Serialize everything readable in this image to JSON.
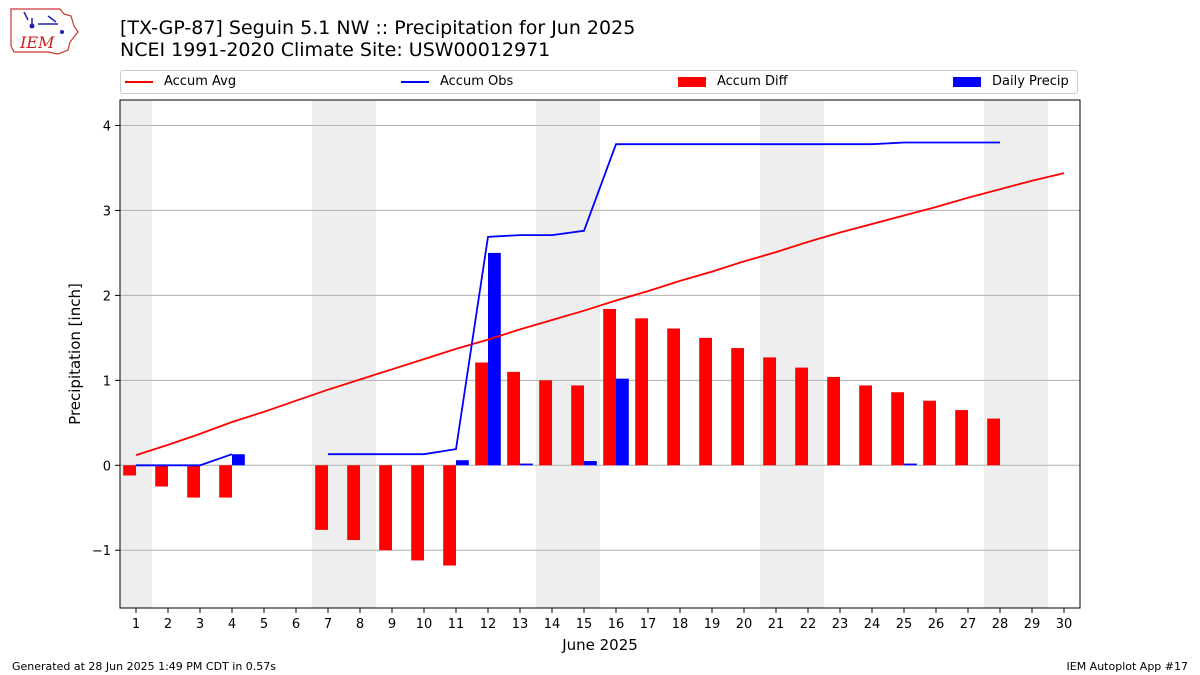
{
  "header": {
    "title_line1": "[TX-GP-87] Seguin 5.1 NW :: Precipitation for Jun 2025",
    "title_line2": "NCEI 1991-2020 Climate Site: USW00012971",
    "logo_text": "IEM"
  },
  "footer": {
    "left": "Generated at 28 Jun 2025 1:49 PM CDT in 0.57s",
    "right": "IEM Autoplot App #17"
  },
  "legend": [
    {
      "label": "Accum Avg",
      "color": "#ff0000",
      "kind": "line"
    },
    {
      "label": "Accum Obs",
      "color": "#0000ff",
      "kind": "line"
    },
    {
      "label": "Accum Diff",
      "color": "#ff0000",
      "kind": "bar"
    },
    {
      "label": "Daily Precip",
      "color": "#0000ff",
      "kind": "bar"
    }
  ],
  "chart_data": {
    "type": "bar",
    "xlabel": "June 2025",
    "ylabel": "Precipitation [inch]",
    "ylim": [
      -1.68,
      4.3
    ],
    "xlim": [
      0.5,
      30.5
    ],
    "grid": true,
    "legend_position": "top",
    "x_ticks": [
      1,
      2,
      3,
      4,
      5,
      6,
      7,
      8,
      9,
      10,
      11,
      12,
      13,
      14,
      15,
      16,
      17,
      18,
      19,
      20,
      21,
      22,
      23,
      24,
      25,
      26,
      27,
      28,
      29,
      30
    ],
    "y_ticks": [
      -1,
      0,
      1,
      2,
      3,
      4
    ],
    "weekend_shading": [
      [
        0.5,
        1.5
      ],
      [
        6.5,
        8.5
      ],
      [
        13.5,
        15.5
      ],
      [
        20.5,
        22.5
      ],
      [
        27.5,
        29.5
      ]
    ],
    "series": [
      {
        "name": "Accum Avg",
        "kind": "line",
        "color": "#ff0000",
        "x": [
          1,
          2,
          3,
          4,
          5,
          6,
          7,
          8,
          9,
          10,
          11,
          12,
          13,
          14,
          15,
          16,
          17,
          18,
          19,
          20,
          21,
          22,
          23,
          24,
          25,
          26,
          27,
          28,
          29,
          30
        ],
        "values": [
          0.12,
          0.24,
          0.37,
          0.51,
          0.63,
          0.76,
          0.89,
          1.01,
          1.13,
          1.25,
          1.37,
          1.48,
          1.6,
          1.71,
          1.82,
          1.94,
          2.05,
          2.17,
          2.28,
          2.4,
          2.51,
          2.63,
          2.74,
          2.84,
          2.94,
          3.04,
          3.15,
          3.25,
          3.35,
          3.44
        ]
      },
      {
        "name": "Accum Obs",
        "kind": "line",
        "color": "#0000ff",
        "x": [
          1,
          2,
          3,
          4,
          null,
          7,
          8,
          9,
          10,
          11,
          12,
          13,
          14,
          15,
          16,
          17,
          18,
          19,
          20,
          21,
          22,
          23,
          24,
          25,
          26,
          27,
          28
        ],
        "values": [
          0.0,
          0.0,
          0.0,
          0.13,
          null,
          0.13,
          0.13,
          0.13,
          0.13,
          0.19,
          2.69,
          2.71,
          2.71,
          2.76,
          3.78,
          3.78,
          3.78,
          3.78,
          3.78,
          3.78,
          3.78,
          3.78,
          3.78,
          3.8,
          3.8,
          3.8,
          3.8
        ]
      },
      {
        "name": "Accum Diff",
        "kind": "bar",
        "color": "#ff0000",
        "x": [
          1,
          2,
          3,
          4,
          7,
          8,
          9,
          10,
          11,
          12,
          13,
          14,
          15,
          16,
          17,
          18,
          19,
          20,
          21,
          22,
          23,
          24,
          25,
          26,
          27,
          28
        ],
        "values": [
          -0.12,
          -0.25,
          -0.38,
          -0.38,
          -0.76,
          -0.88,
          -1.0,
          -1.12,
          -1.18,
          1.21,
          1.1,
          1.0,
          0.94,
          1.84,
          1.73,
          1.61,
          1.5,
          1.38,
          1.27,
          1.15,
          1.04,
          0.94,
          0.86,
          0.76,
          0.65,
          0.55
        ]
      },
      {
        "name": "Daily Precip",
        "kind": "bar",
        "color": "#0000ff",
        "x": [
          4,
          11,
          12,
          13,
          15,
          16,
          25
        ],
        "values": [
          0.13,
          0.06,
          2.5,
          0.02,
          0.05,
          1.02,
          0.02
        ]
      }
    ]
  }
}
